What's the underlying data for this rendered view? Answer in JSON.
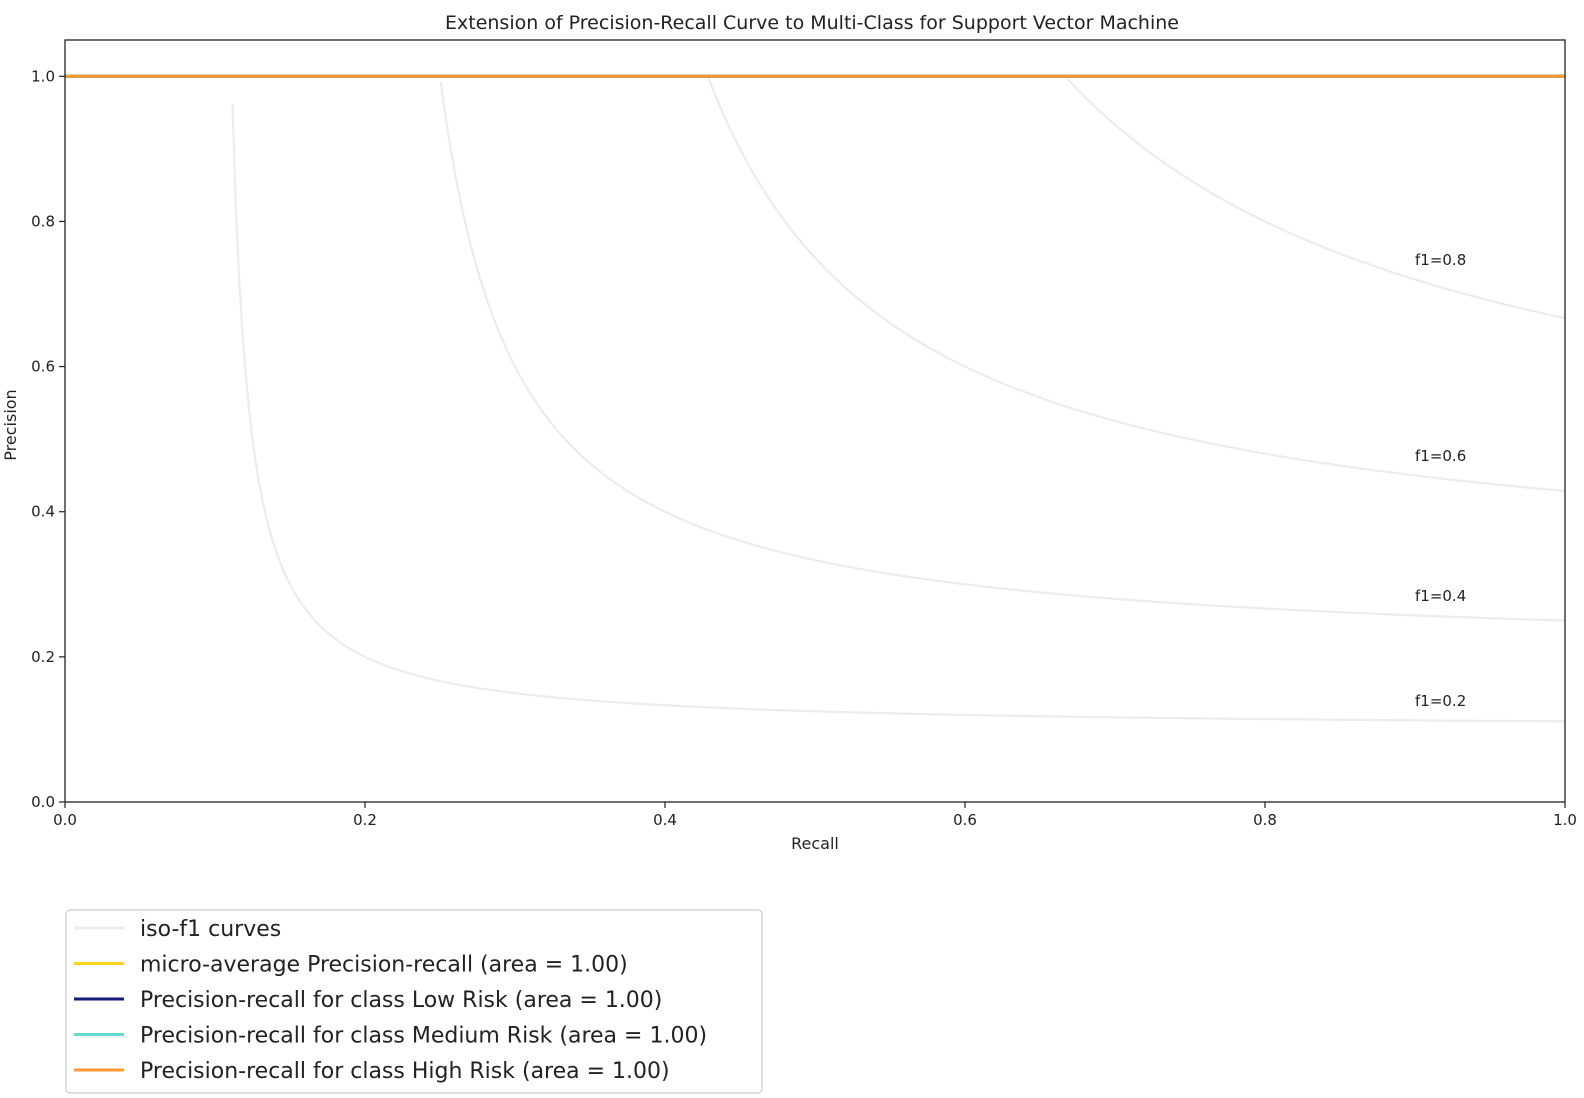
{
  "chart_data": {
    "type": "line",
    "title": "Extension of Precision-Recall Curve to Multi-Class for Support Vector Machine",
    "xlabel": "Recall",
    "ylabel": "Precision",
    "xlim": [
      0.0,
      1.0
    ],
    "ylim": [
      0.0,
      1.05
    ],
    "x_ticks": [
      {
        "value": 0.0,
        "label": "0.0"
      },
      {
        "value": 0.2,
        "label": "0.2"
      },
      {
        "value": 0.4,
        "label": "0.4"
      },
      {
        "value": 0.6,
        "label": "0.6"
      },
      {
        "value": 0.8,
        "label": "0.8"
      },
      {
        "value": 1.0,
        "label": "1.0"
      }
    ],
    "y_ticks": [
      {
        "value": 0.0,
        "label": "0.0"
      },
      {
        "value": 0.2,
        "label": "0.2"
      },
      {
        "value": 0.4,
        "label": "0.4"
      },
      {
        "value": 0.6,
        "label": "0.6"
      },
      {
        "value": 0.8,
        "label": "0.8"
      },
      {
        "value": 1.0,
        "label": "1.0"
      }
    ],
    "grid": false,
    "legend_position": "bottom-left, below plot",
    "iso_f1": {
      "color": "#ececec",
      "values": [
        0.2,
        0.4,
        0.6,
        0.8
      ],
      "labels": [
        "f1=0.2",
        "f1=0.4",
        "f1=0.6",
        "f1=0.8"
      ],
      "label_x": 0.9
    },
    "series": [
      {
        "name": "micro-average Precision-recall (area = 1.00)",
        "color": "#ffd21f",
        "x": [
          0.0,
          1.0
        ],
        "y": [
          1.0,
          1.0
        ]
      },
      {
        "name": "Precision-recall for class Low Risk (area = 1.00)",
        "color": "#14197a",
        "x": [
          0.0,
          1.0
        ],
        "y": [
          1.0,
          1.0
        ]
      },
      {
        "name": "Precision-recall for class Medium Risk (area = 1.00)",
        "color": "#66d9cf",
        "x": [
          0.0,
          1.0
        ],
        "y": [
          1.0,
          1.0
        ]
      },
      {
        "name": "Precision-recall for class High Risk (area = 1.00)",
        "color": "#ff9933",
        "x": [
          0.0,
          1.0
        ],
        "y": [
          1.0,
          1.0
        ]
      }
    ],
    "legend_entries": [
      {
        "label": "iso-f1 curves",
        "color": "#ececec"
      },
      {
        "label": "micro-average Precision-recall (area = 1.00)",
        "color": "#ffd21f"
      },
      {
        "label": "Precision-recall for class Low Risk (area = 1.00)",
        "color": "#14197a"
      },
      {
        "label": "Precision-recall for class Medium Risk (area = 1.00)",
        "color": "#66d9cf"
      },
      {
        "label": "Precision-recall for class High Risk (area = 1.00)",
        "color": "#ff9933"
      }
    ]
  }
}
